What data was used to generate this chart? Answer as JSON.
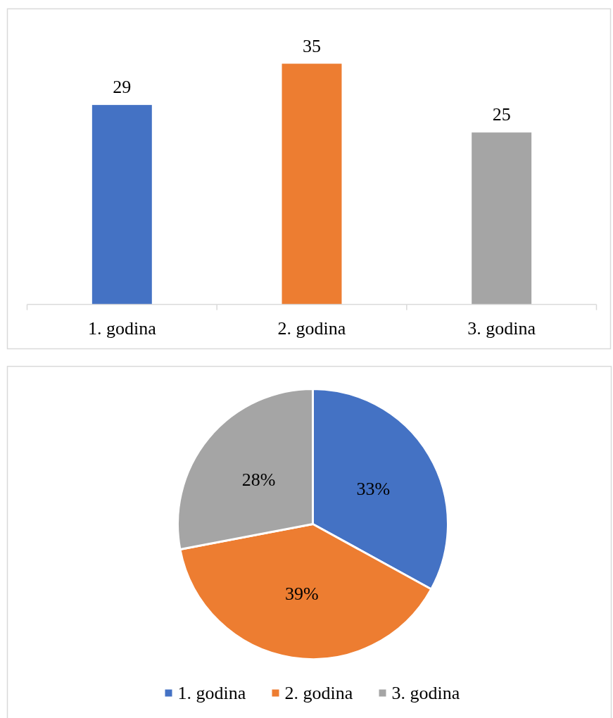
{
  "chart_data": [
    {
      "type": "bar",
      "categories": [
        "1. godina",
        "2. godina",
        "3. godina"
      ],
      "values": [
        29,
        35,
        25
      ],
      "colors": [
        "#4472c4",
        "#ed7d31",
        "#a5a5a5"
      ],
      "data_labels": true
    },
    {
      "type": "pie",
      "categories": [
        "1. godina",
        "2. godina",
        "3. godina"
      ],
      "values": [
        33,
        39,
        28
      ],
      "colors": [
        "#4472c4",
        "#ed7d31",
        "#a5a5a5"
      ],
      "value_labels": [
        "33%",
        "39%",
        "28%"
      ],
      "legend": "bottom"
    }
  ]
}
